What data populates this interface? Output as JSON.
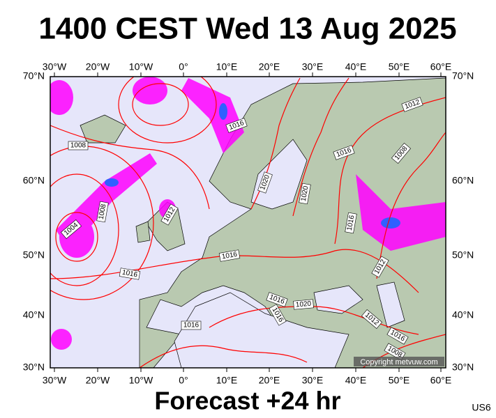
{
  "title": "1400 CEST Wed 13 Aug 2025",
  "footer": "Forecast +24 hr",
  "code": "US6",
  "copyright": "Copyright metvuw.com",
  "lon_labels": [
    "30°W",
    "20°W",
    "10°W",
    "0°",
    "10°E",
    "20°E",
    "30°E",
    "40°E",
    "50°E",
    "60°E"
  ],
  "lat_labels": [
    "70°N",
    "60°N",
    "50°N",
    "40°N",
    "30°N"
  ],
  "isobar_labels": [
    "1016",
    "1008",
    "1016",
    "1008",
    "1012",
    "1020",
    "1020",
    "1008",
    "1012",
    "1004",
    "1016",
    "1016",
    "1012",
    "1016",
    "1016",
    "1020",
    "1016",
    "1012",
    "1016",
    "1016",
    "1008"
  ]
}
